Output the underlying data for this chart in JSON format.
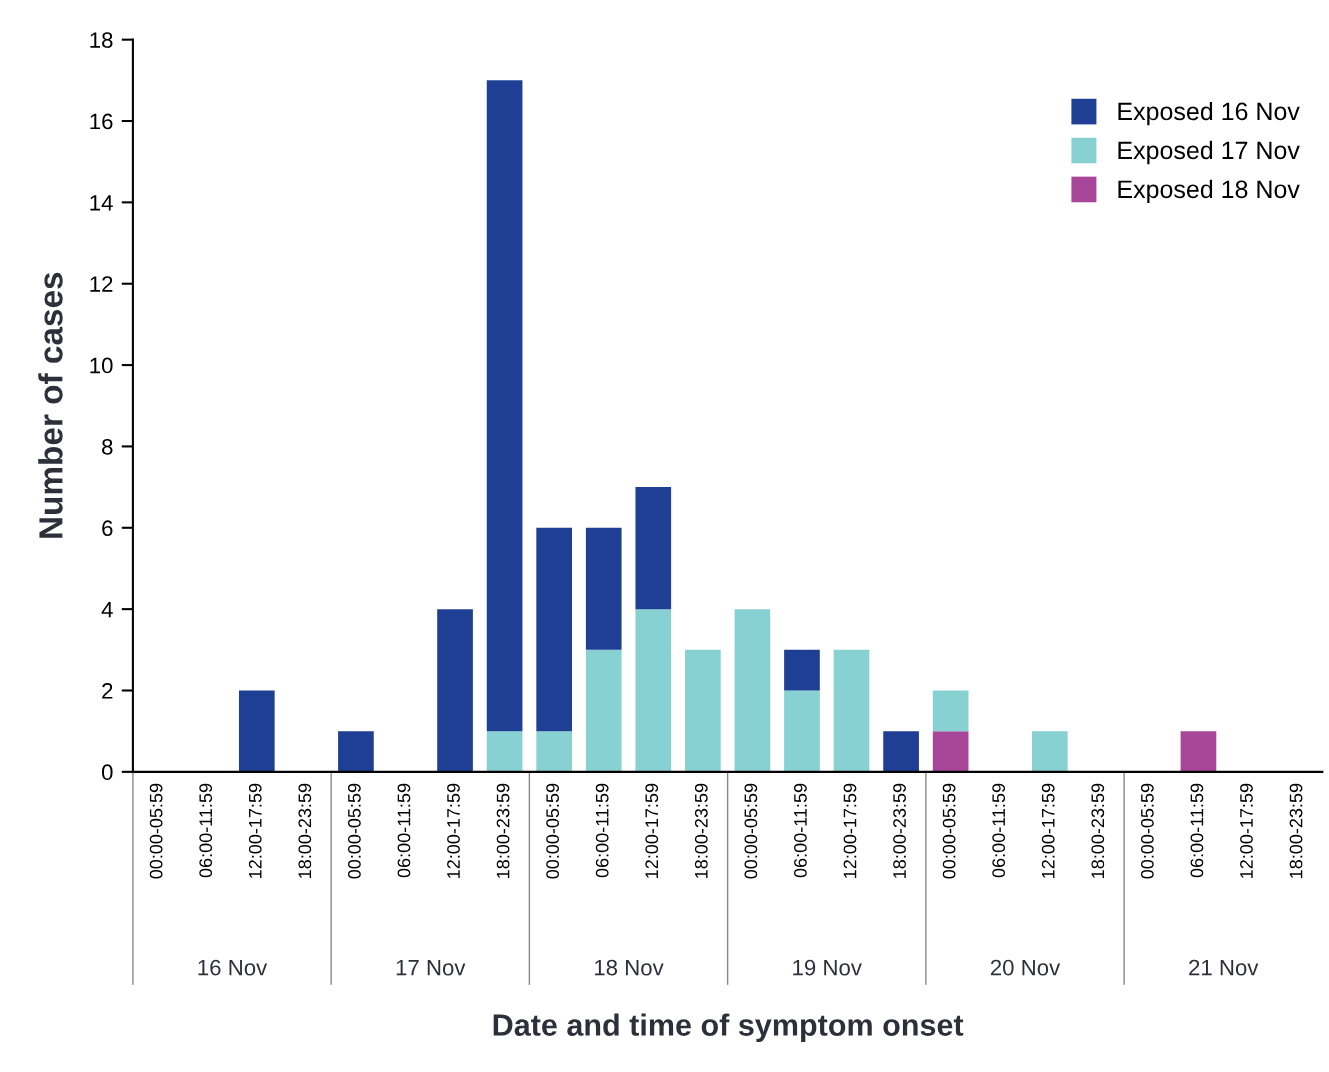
{
  "chart_data": {
    "type": "bar",
    "stacked": true,
    "xlabel": "Date and time of symptom onset",
    "ylabel": "Number of cases",
    "categories": [
      "00:00-05:59",
      "06:00-11:59",
      "12:00-17:59",
      "18:00-23:59",
      "00:00-05:59",
      "06:00-11:59",
      "12:00-17:59",
      "18:00-23:59",
      "00:00-05:59",
      "06:00-11:59",
      "12:00-17:59",
      "18:00-23:59",
      "00:00-05:59",
      "06:00-11:59",
      "12:00-17:59",
      "18:00-23:59",
      "00:00-05:59",
      "06:00-11:59",
      "12:00-17:59",
      "18:00-23:59",
      "00:00-05:59",
      "06:00-11:59",
      "12:00-17:59",
      "18:00-23:59"
    ],
    "series": [
      {
        "name": "Exposed 18 Nov",
        "color": "#a8479a",
        "values": [
          0,
          0,
          0,
          0,
          0,
          0,
          0,
          0,
          0,
          0,
          0,
          0,
          0,
          0,
          0,
          0,
          1,
          0,
          0,
          0,
          0,
          1,
          0,
          0
        ]
      },
      {
        "name": "Exposed 17 Nov",
        "color": "#88d1d3",
        "values": [
          0,
          0,
          0,
          0,
          0,
          0,
          0,
          1,
          1,
          3,
          4,
          3,
          4,
          2,
          3,
          0,
          1,
          0,
          1,
          0,
          0,
          0,
          0,
          0
        ]
      },
      {
        "name": "Exposed 16 Nov",
        "color": "#1e3f94",
        "values": [
          0,
          0,
          2,
          0,
          1,
          0,
          4,
          16,
          5,
          3,
          3,
          0,
          0,
          1,
          0,
          1,
          0,
          0,
          0,
          0,
          0,
          0,
          0,
          0
        ]
      }
    ],
    "annotations": [
      "16 Nov",
      "17 Nov",
      "18 Nov",
      "19 Nov",
      "20 Nov",
      "21 Nov"
    ],
    "ylim": [
      0,
      18
    ],
    "yticks": [
      0,
      2,
      4,
      6,
      8,
      10,
      12,
      14,
      16,
      18
    ],
    "grid": false,
    "legend": "top right"
  }
}
